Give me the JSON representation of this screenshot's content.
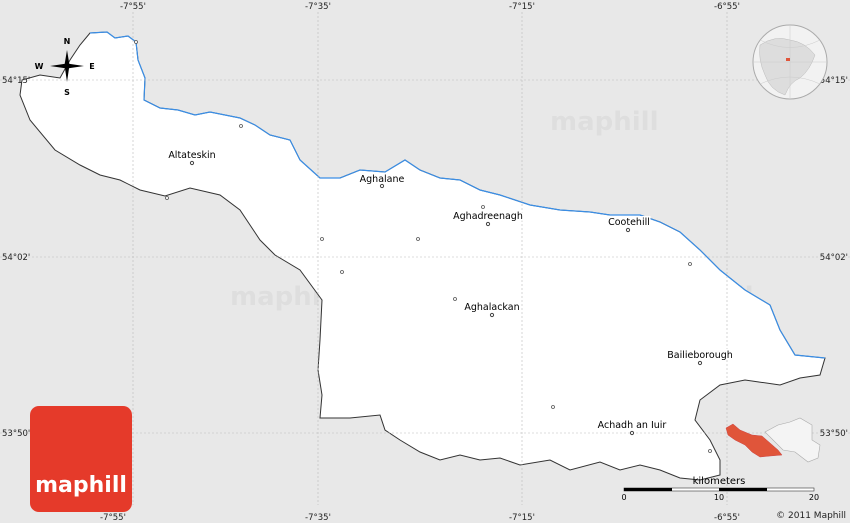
{
  "map": {
    "longitude_labels": [
      "-7°55'",
      "-7°35'",
      "-7°15'",
      "-6°55'"
    ],
    "latitude_labels": [
      "54°15'",
      "54°02'",
      "53°50'"
    ],
    "compass": {
      "n": "N",
      "s": "S",
      "e": "E",
      "w": "W"
    },
    "towns": [
      {
        "name": "Altateskin"
      },
      {
        "name": "Aghalane"
      },
      {
        "name": "Aghadreenagh"
      },
      {
        "name": "Cootehill"
      },
      {
        "name": "Aghalackan"
      },
      {
        "name": "Bailieborough"
      },
      {
        "name": "Achadh an Iuir"
      }
    ],
    "scale": {
      "unit": "kilometers",
      "ticks": [
        "0",
        "10",
        "20"
      ]
    },
    "copyright": "© 2011 Maphill",
    "logo": "maphill",
    "watermark": "maphill",
    "colors": {
      "land": "#ffffff",
      "background": "#e8e8e8",
      "water_border": "#3a8ee6",
      "highlight": "#e0553a",
      "logo": "#e53a2a"
    }
  }
}
